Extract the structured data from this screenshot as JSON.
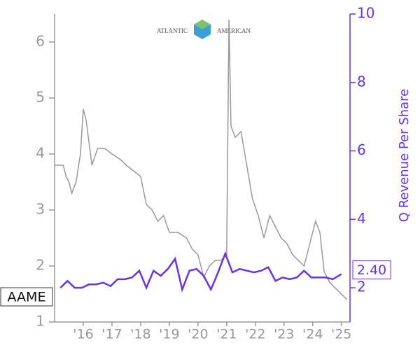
{
  "chart_data": {
    "type": "line",
    "logo_text": [
      "ATLANTIC",
      "AMERICAN"
    ],
    "y2label": "Q Revenue Per Share",
    "xlim": [
      2015,
      2025.3
    ],
    "xticks": [
      {
        "value": 2016,
        "label": "'16"
      },
      {
        "value": 2017,
        "label": "'17"
      },
      {
        "value": 2018,
        "label": "'18"
      },
      {
        "value": 2019,
        "label": "'19"
      },
      {
        "value": 2020,
        "label": "'20"
      },
      {
        "value": 2021,
        "label": "'21"
      },
      {
        "value": 2022,
        "label": "'22"
      },
      {
        "value": 2023,
        "label": "'23"
      },
      {
        "value": 2024,
        "label": "'24"
      },
      {
        "value": 2025,
        "label": "'25"
      }
    ],
    "ylim": [
      1,
      6.5
    ],
    "yticks": [
      1,
      2,
      3,
      4,
      5,
      6
    ],
    "y2lim": [
      1,
      10
    ],
    "y2ticks": [
      2,
      4,
      6,
      8,
      10
    ],
    "series": [
      {
        "name": "AAME",
        "color": "#999999",
        "x": [
          2015.0,
          2015.3,
          2015.4,
          2015.5,
          2015.6,
          2015.75,
          2015.9,
          2016.0,
          2016.1,
          2016.3,
          2016.5,
          2016.75,
          2017.0,
          2017.3,
          2017.5,
          2017.75,
          2018.0,
          2018.2,
          2018.4,
          2018.6,
          2018.8,
          2019.0,
          2019.3,
          2019.6,
          2019.8,
          2020.0,
          2020.2,
          2020.4,
          2020.6,
          2020.8,
          2021.0,
          2021.08,
          2021.15,
          2021.3,
          2021.5,
          2021.7,
          2021.9,
          2022.1,
          2022.3,
          2022.5,
          2022.7,
          2022.9,
          2023.1,
          2023.3,
          2023.5,
          2023.7,
          2023.9,
          2024.1,
          2024.25,
          2024.4,
          2024.6,
          2024.8,
          2025.0,
          2025.2
        ],
        "values": [
          3.8,
          3.8,
          3.6,
          3.5,
          3.3,
          3.5,
          4.0,
          4.8,
          4.6,
          3.8,
          4.1,
          4.1,
          4.0,
          3.9,
          3.8,
          3.7,
          3.6,
          3.1,
          3.0,
          2.8,
          2.9,
          2.6,
          2.6,
          2.5,
          2.3,
          2.2,
          1.8,
          2.0,
          2.1,
          2.1,
          2.2,
          6.4,
          4.5,
          4.3,
          4.4,
          3.8,
          3.2,
          2.9,
          2.5,
          2.9,
          2.7,
          2.5,
          2.4,
          2.2,
          2.1,
          2.0,
          2.4,
          2.8,
          2.6,
          1.9,
          1.7,
          1.6,
          1.5,
          1.4
        ]
      },
      {
        "color": "#6633ee",
        "axis": "y2",
        "x": [
          2015.2,
          2015.45,
          2015.7,
          2015.95,
          2016.2,
          2016.45,
          2016.7,
          2016.95,
          2017.2,
          2017.45,
          2017.7,
          2017.95,
          2018.2,
          2018.45,
          2018.7,
          2018.95,
          2019.2,
          2019.45,
          2019.7,
          2019.95,
          2020.2,
          2020.45,
          2020.7,
          2020.95,
          2021.2,
          2021.45,
          2021.7,
          2021.95,
          2022.2,
          2022.45,
          2022.7,
          2022.95,
          2023.2,
          2023.45,
          2023.7,
          2023.95,
          2024.2,
          2024.45,
          2024.7,
          2025.0
        ],
        "values": [
          2.0,
          2.2,
          2.0,
          2.0,
          2.1,
          2.1,
          2.15,
          2.05,
          2.25,
          2.25,
          2.3,
          2.5,
          2.0,
          2.5,
          2.35,
          2.55,
          2.85,
          1.95,
          2.5,
          2.55,
          2.35,
          1.95,
          2.45,
          3.0,
          2.45,
          2.55,
          2.5,
          2.45,
          2.5,
          2.6,
          2.2,
          2.3,
          2.25,
          2.3,
          2.5,
          2.3,
          2.3,
          2.3,
          2.25,
          2.4
        ],
        "value_labels": [
          null,
          null,
          null,
          null,
          null,
          null,
          null,
          null,
          null,
          null,
          null,
          null,
          null,
          null,
          null,
          null,
          null,
          null,
          null,
          null,
          null,
          null,
          null,
          null,
          null,
          null,
          null,
          null,
          null,
          null,
          null,
          null,
          null,
          null,
          null,
          null,
          null,
          null,
          null,
          "2.40"
        ]
      }
    ]
  }
}
